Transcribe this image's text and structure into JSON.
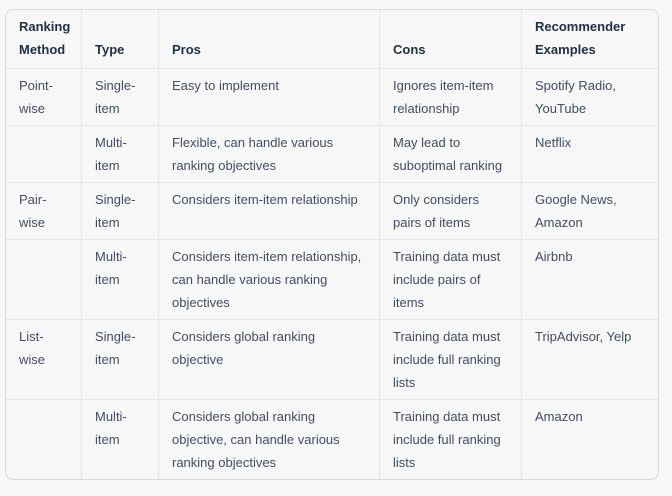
{
  "colors": {
    "page_background": "#f7f7f8",
    "table_background": "#f7f7f8",
    "outer_border": "#d9dae2",
    "inner_border": "#e4e4ea",
    "header_text": "#243044",
    "body_text": "#414d63"
  },
  "table": {
    "headers": [
      "Ranking Method",
      "Type",
      "Pros",
      "Cons",
      "Recommender Examples"
    ],
    "rows": [
      [
        "Point-wise",
        "Single-item",
        "Easy to implement",
        "Ignores item-item relationship",
        "Spotify Radio, YouTube"
      ],
      [
        "",
        "Multi-item",
        "Flexible, can handle various ranking objectives",
        "May lead to suboptimal ranking",
        "Netflix"
      ],
      [
        "Pair-wise",
        "Single-item",
        "Considers item-item relationship",
        "Only considers pairs of items",
        "Google News, Amazon"
      ],
      [
        "",
        "Multi-item",
        "Considers item-item relationship, can handle various ranking objectives",
        "Training data must include pairs of items",
        "Airbnb"
      ],
      [
        "List-wise",
        "Single-item",
        "Considers global ranking objective",
        "Training data must include full ranking lists",
        "TripAdvisor, Yelp"
      ],
      [
        "",
        "Multi-item",
        "Considers global ranking objective, can handle various ranking objectives",
        "Training data must include full ranking lists",
        "Amazon"
      ]
    ]
  }
}
